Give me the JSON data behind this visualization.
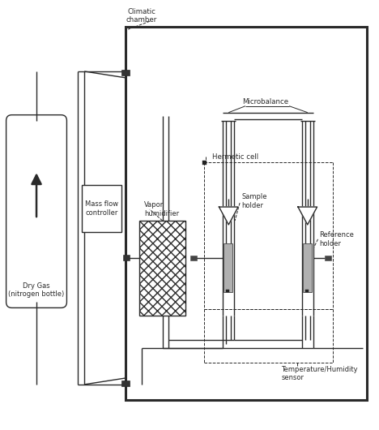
{
  "line_color": "#2a2a2a",
  "labels": {
    "dry_gas": "Dry Gas\n(nitrogen bottle)",
    "mass_flow": "Mass flow\ncontroller",
    "climatic": "Climatic\nchamber",
    "hermetic": "Hermetic cell",
    "microbalance": "Microbalance",
    "vapor_humidifier": "Vapor\nhumidifier",
    "sample_holder": "Sample\nholder",
    "reference_holder": "Reference\nholder",
    "temp_humidity": "Temperature/Humidity\nsensor"
  },
  "gray_fill": "#aaaaaa",
  "light_gray": "#cccccc"
}
